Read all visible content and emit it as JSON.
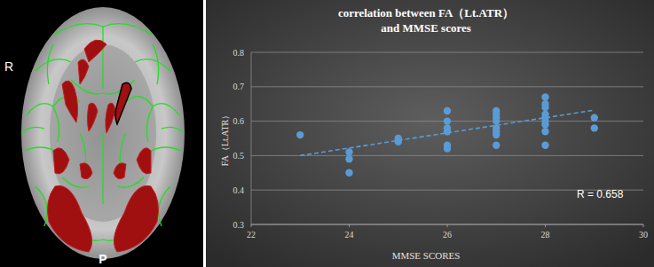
{
  "brain_labels": {
    "side": "R",
    "bottom": "P"
  },
  "chart_data": {
    "type": "scatter",
    "title": "correlation between FA（Lt.ATR）\nand MMSE scores",
    "x_label": "MMSE SCORES",
    "y_label": "FA（Lt.ATR）",
    "annotation": "R = 0.658",
    "xlim": [
      22,
      30
    ],
    "xticks": [
      22,
      24,
      26,
      28,
      30
    ],
    "ylim": [
      0.3,
      0.8
    ],
    "yticks": [
      0.3,
      0.4,
      0.5,
      0.6,
      0.7,
      0.8
    ],
    "grid": true,
    "series": [
      {
        "type": "scatter",
        "color": "#5b9bd5",
        "marker": "circle",
        "x": [
          23,
          24,
          24,
          24,
          25,
          25,
          25,
          26,
          26,
          26,
          26,
          26,
          26,
          27,
          27,
          27,
          27,
          27,
          27,
          27,
          27,
          28,
          28,
          28,
          28,
          28,
          28,
          28,
          28,
          28,
          29,
          29
        ],
        "values": [
          0.56,
          0.51,
          0.49,
          0.45,
          0.55,
          0.54,
          0.545,
          0.63,
          0.6,
          0.58,
          0.57,
          0.53,
          0.52,
          0.63,
          0.62,
          0.61,
          0.6,
          0.58,
          0.57,
          0.56,
          0.53,
          0.67,
          0.65,
          0.64,
          0.62,
          0.61,
          0.6,
          0.59,
          0.57,
          0.53,
          0.61,
          0.58
        ]
      },
      {
        "type": "line",
        "color": "#5b9bd5",
        "line_style": "dashed",
        "x": [
          23,
          29
        ],
        "values": [
          0.5,
          0.632
        ]
      }
    ]
  }
}
